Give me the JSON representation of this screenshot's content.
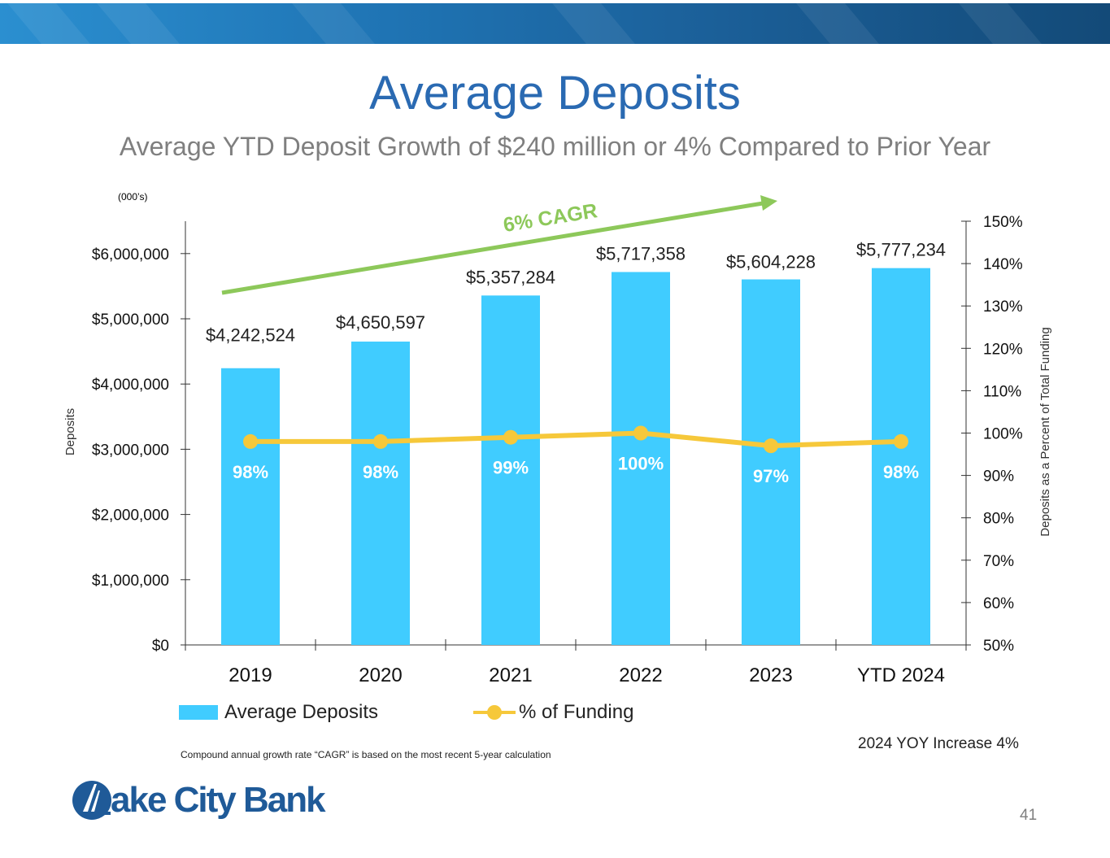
{
  "header": {
    "title": "Average Deposits",
    "subtitle": "Average YTD Deposit Growth of $240 million or 4% Compared to Prior Year",
    "units_note": "(000’s)"
  },
  "cagr_label": "6% CAGR",
  "footnote": "Compound annual growth rate “CAGR” is based on the most recent 5-year calculation",
  "yoy_note": "2024 YOY Increase 4%",
  "page_number": "41",
  "logo": {
    "text": "ake City Bank",
    "alt": "Lake City Bank"
  },
  "legend": {
    "bars_label": "Average Deposits",
    "line_label": "% of Funding"
  },
  "colors": {
    "bars": "#40ccff",
    "line": "#f6c83a",
    "cagr_arrow": "#8dc85a",
    "title": "#2a6ab2",
    "banner": "#1f74b4"
  },
  "chart_data": {
    "type": "bar",
    "categories": [
      "2019",
      "2020",
      "2021",
      "2022",
      "2023",
      "YTD 2024"
    ],
    "series": [
      {
        "name": "Average Deposits",
        "type": "bar",
        "axis": "left",
        "values": [
          4242524,
          4650597,
          5357284,
          5717358,
          5604228,
          5777234
        ],
        "labels": [
          "$4,242,524",
          "$4,650,597",
          "$5,357,284",
          "$5,717,358",
          "$5,604,228",
          "$5,777,234"
        ]
      },
      {
        "name": "% of Funding",
        "type": "line",
        "axis": "right",
        "values": [
          98,
          98,
          99,
          100,
          97,
          98
        ],
        "labels": [
          "98%",
          "98%",
          "99%",
          "100%",
          "97%",
          "98%"
        ]
      }
    ],
    "ylabel": "Deposits",
    "y2label": "Deposits as a Percent of Total Funding",
    "ylim": [
      0,
      6500000
    ],
    "yticks": [
      0,
      1000000,
      2000000,
      3000000,
      4000000,
      5000000,
      6000000
    ],
    "ytick_labels": [
      "$0",
      "$1,000,000",
      "$2,000,000",
      "$3,000,000",
      "$4,000,000",
      "$5,000,000",
      "$6,000,000"
    ],
    "y2lim": [
      50,
      150
    ],
    "y2ticks": [
      50,
      60,
      70,
      80,
      90,
      100,
      110,
      120,
      130,
      140,
      150
    ],
    "y2tick_labels": [
      "50%",
      "60%",
      "70%",
      "80%",
      "90%",
      "100%",
      "110%",
      "120%",
      "130%",
      "140%",
      "150%"
    ],
    "grid": false,
    "legend_position": "bottom"
  }
}
